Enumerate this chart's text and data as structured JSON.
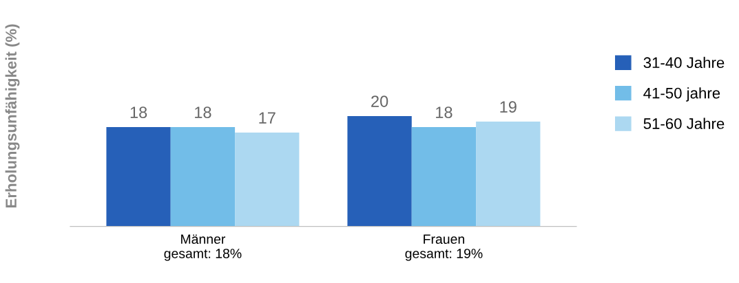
{
  "chart_data": {
    "type": "bar",
    "ylabel": "Erholungsunfähigkeit (%)",
    "categories": [
      "Männer\ngesamt: 18%",
      "Frauen\ngesamt: 19%"
    ],
    "series": [
      {
        "name": "31-40 Jahre",
        "color": "#2660b8",
        "values": [
          18,
          20
        ]
      },
      {
        "name": "41-50 jahre",
        "color": "#72bde8",
        "values": [
          18,
          18
        ]
      },
      {
        "name": "51-60 Jahre",
        "color": "#acd8f1",
        "values": [
          17,
          19
        ]
      }
    ],
    "data_labels": true,
    "legend": "right",
    "grid": false
  }
}
